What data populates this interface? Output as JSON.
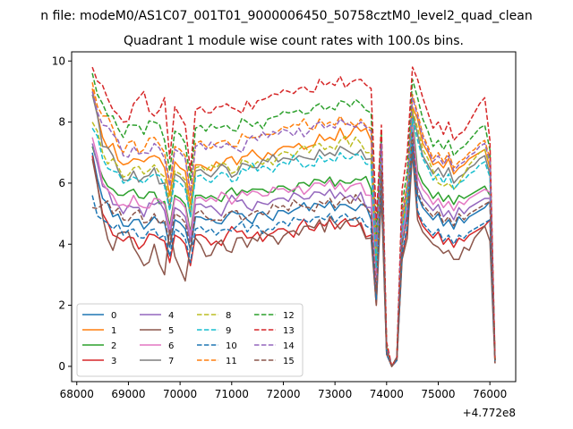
{
  "suptitle": "n file: modeM0/AS1C07_001T01_9000006450_50758cztM0_level2_quad_clean",
  "chart_data": {
    "type": "line",
    "title": "Quadrant 1 module wise count rates with 100.0s bins.",
    "xlabel": "",
    "ylabel": "",
    "x_offset_label": "+4.772e8",
    "xlim": [
      67900,
      76500
    ],
    "ylim": [
      -0.5,
      10.3
    ],
    "xticks": [
      68000,
      69000,
      70000,
      71000,
      72000,
      73000,
      74000,
      75000,
      76000
    ],
    "yticks": [
      0,
      2,
      4,
      6,
      8,
      10
    ],
    "legend": {
      "location": "lower-left",
      "columns": 4
    },
    "anchor_x": [
      68300,
      68500,
      68700,
      68900,
      69100,
      69300,
      69500,
      69700,
      69800,
      69900,
      70000,
      70100,
      70200,
      70300,
      70500,
      70700,
      70900,
      71100,
      71300,
      71500,
      71700,
      71900,
      72100,
      72300,
      72500,
      72700,
      72800,
      72900,
      73000,
      73100,
      73300,
      73500,
      73700,
      73800,
      73900,
      74000,
      74100,
      74200,
      74300,
      74400,
      74500,
      74600,
      74700,
      74800,
      74900,
      75000,
      75100,
      75200,
      75300,
      75400,
      75500,
      75600,
      75700,
      75800,
      75900,
      76000,
      76100
    ],
    "series": [
      {
        "name": "0",
        "color": "#1f77b4",
        "dash": "solid",
        "values": [
          7.0,
          5.5,
          4.9,
          4.6,
          4.8,
          4.5,
          4.9,
          4.7,
          3.9,
          4.8,
          4.7,
          4.5,
          3.8,
          4.9,
          4.8,
          4.7,
          4.9,
          5.0,
          4.8,
          5.0,
          4.9,
          5.1,
          5.0,
          5.2,
          5.1,
          5.3,
          5.2,
          5.4,
          5.1,
          5.3,
          5.2,
          5.3,
          4.8,
          2.2,
          6.8,
          0.5,
          0.0,
          0.3,
          4.0,
          5.0,
          7.8,
          5.6,
          5.2,
          5.0,
          4.8,
          5.0,
          4.6,
          4.8,
          4.5,
          4.9,
          4.7,
          4.9,
          5.0,
          5.1,
          5.2,
          5.4,
          0.2
        ]
      },
      {
        "name": "1",
        "color": "#ff7f0e",
        "dash": "solid",
        "values": [
          9.1,
          7.5,
          7.3,
          6.6,
          6.8,
          6.7,
          6.9,
          6.5,
          5.6,
          6.7,
          6.5,
          6.4,
          5.3,
          6.6,
          6.5,
          6.7,
          6.8,
          6.6,
          6.9,
          6.9,
          7.0,
          7.1,
          7.2,
          7.3,
          7.2,
          7.6,
          7.4,
          7.5,
          7.4,
          7.8,
          7.6,
          7.7,
          7.4,
          3.8,
          7.2,
          0.6,
          0.0,
          0.3,
          4.7,
          5.7,
          8.5,
          8.1,
          7.3,
          7.0,
          6.6,
          6.7,
          6.5,
          6.8,
          6.3,
          6.5,
          6.6,
          6.8,
          6.9,
          7.0,
          7.1,
          6.5,
          0.2
        ]
      },
      {
        "name": "2",
        "color": "#2ca02c",
        "dash": "solid",
        "values": [
          7.2,
          6.2,
          5.8,
          5.6,
          5.8,
          5.5,
          5.7,
          5.4,
          4.6,
          5.6,
          5.5,
          5.3,
          4.4,
          5.6,
          5.5,
          5.5,
          5.7,
          5.6,
          5.7,
          5.8,
          5.7,
          5.9,
          5.8,
          6.0,
          5.9,
          6.1,
          6.0,
          6.2,
          5.9,
          6.1,
          6.0,
          6.1,
          5.8,
          3.0,
          6.5,
          0.5,
          0.0,
          0.3,
          4.3,
          5.4,
          8.2,
          6.4,
          6.0,
          5.8,
          5.5,
          5.7,
          5.4,
          5.6,
          5.3,
          5.6,
          5.5,
          5.6,
          5.7,
          5.8,
          5.9,
          5.6,
          0.2
        ]
      },
      {
        "name": "3",
        "color": "#d62728",
        "dash": "solid",
        "values": [
          6.9,
          5.0,
          4.3,
          4.1,
          4.2,
          4.0,
          4.3,
          4.1,
          3.4,
          4.3,
          4.2,
          4.0,
          3.3,
          4.3,
          4.2,
          4.1,
          4.3,
          4.4,
          4.2,
          4.4,
          4.3,
          4.5,
          4.4,
          4.6,
          4.5,
          4.7,
          4.6,
          4.8,
          4.5,
          4.7,
          4.6,
          4.7,
          4.3,
          2.0,
          6.0,
          0.4,
          0.0,
          0.2,
          3.6,
          4.5,
          7.2,
          5.0,
          4.6,
          4.4,
          4.2,
          4.4,
          4.0,
          4.2,
          3.9,
          4.2,
          4.1,
          4.3,
          4.4,
          4.5,
          4.6,
          4.8,
          0.1
        ]
      },
      {
        "name": "4",
        "color": "#9467bd",
        "dash": "solid",
        "values": [
          7.3,
          5.9,
          5.3,
          5.0,
          5.2,
          4.9,
          5.3,
          5.1,
          4.3,
          5.2,
          5.1,
          4.9,
          4.1,
          5.3,
          5.2,
          5.1,
          5.3,
          5.4,
          5.2,
          5.4,
          5.3,
          5.5,
          5.4,
          5.6,
          5.5,
          5.7,
          5.6,
          5.8,
          5.5,
          5.7,
          5.6,
          5.7,
          5.2,
          2.5,
          6.6,
          0.5,
          0.0,
          0.3,
          4.1,
          5.1,
          7.9,
          5.9,
          5.5,
          5.3,
          5.1,
          5.3,
          4.9,
          5.1,
          4.8,
          5.2,
          5.0,
          5.2,
          5.3,
          5.4,
          5.5,
          5.5,
          0.2
        ]
      },
      {
        "name": "5",
        "color": "#8c564b",
        "dash": "solid",
        "values": [
          6.8,
          4.9,
          3.8,
          4.4,
          3.9,
          3.3,
          4.0,
          3.0,
          4.5,
          3.6,
          3.2,
          2.8,
          3.9,
          4.2,
          3.6,
          4.0,
          3.8,
          4.2,
          3.9,
          4.1,
          4.3,
          4.0,
          4.4,
          4.3,
          4.6,
          4.8,
          4.4,
          4.9,
          4.7,
          4.5,
          4.8,
          4.6,
          4.2,
          2.0,
          5.6,
          0.4,
          0.0,
          0.2,
          3.5,
          4.2,
          7.0,
          4.8,
          4.4,
          4.2,
          4.0,
          3.9,
          3.7,
          3.8,
          3.5,
          3.5,
          3.9,
          3.8,
          4.2,
          4.4,
          4.6,
          4.1,
          0.1
        ]
      },
      {
        "name": "6",
        "color": "#e377c2",
        "dash": "solid",
        "values": [
          7.5,
          6.0,
          5.6,
          5.3,
          5.6,
          5.2,
          5.5,
          5.3,
          4.5,
          5.5,
          5.4,
          5.2,
          4.3,
          5.5,
          5.4,
          5.4,
          5.6,
          5.5,
          5.6,
          5.7,
          5.6,
          5.8,
          5.7,
          5.9,
          5.8,
          6.0,
          5.9,
          6.1,
          5.8,
          6.0,
          5.9,
          6.0,
          5.6,
          2.8,
          6.7,
          0.5,
          0.0,
          0.3,
          4.2,
          5.3,
          8.0,
          6.2,
          5.8,
          5.6,
          5.3,
          5.5,
          5.2,
          5.4,
          5.1,
          5.4,
          5.3,
          5.5,
          5.6,
          5.7,
          5.8,
          5.7,
          0.2
        ]
      },
      {
        "name": "7",
        "color": "#7f7f7f",
        "dash": "solid",
        "values": [
          8.9,
          7.2,
          6.9,
          6.1,
          6.4,
          6.2,
          6.5,
          6.0,
          5.2,
          6.3,
          6.2,
          6.0,
          4.9,
          6.4,
          6.3,
          6.4,
          6.5,
          6.3,
          6.6,
          6.5,
          6.7,
          6.7,
          6.8,
          6.9,
          6.8,
          7.1,
          6.9,
          7.0,
          6.9,
          7.2,
          7.0,
          7.1,
          6.8,
          3.4,
          7.0,
          0.6,
          0.0,
          0.3,
          4.5,
          5.5,
          8.3,
          7.6,
          6.9,
          6.6,
          6.3,
          6.5,
          6.2,
          6.5,
          6.0,
          6.2,
          6.3,
          6.5,
          6.6,
          6.8,
          6.9,
          6.3,
          0.2
        ]
      },
      {
        "name": "8",
        "color": "#bcbd22",
        "dash": "dashed",
        "values": [
          8.0,
          7.0,
          6.8,
          6.2,
          6.5,
          6.3,
          6.6,
          6.2,
          5.4,
          6.4,
          6.3,
          6.1,
          5.1,
          6.5,
          6.4,
          6.5,
          6.6,
          6.4,
          6.7,
          6.7,
          6.8,
          6.9,
          7.0,
          7.1,
          7.0,
          7.3,
          7.1,
          7.2,
          7.1,
          7.4,
          7.2,
          7.3,
          7.0,
          3.5,
          7.1,
          0.6,
          0.0,
          0.3,
          4.6,
          5.6,
          8.4,
          7.8,
          7.1,
          6.8,
          6.4,
          6.0,
          5.9,
          6.0,
          5.8,
          6.0,
          6.3,
          6.6,
          6.8,
          7.0,
          7.1,
          6.6,
          0.2
        ]
      },
      {
        "name": "9",
        "color": "#17becf",
        "dash": "dashed",
        "values": [
          7.8,
          6.8,
          6.4,
          6.0,
          6.2,
          6.0,
          6.3,
          5.9,
          5.1,
          6.1,
          6.0,
          5.8,
          4.9,
          6.2,
          6.1,
          6.2,
          6.3,
          6.1,
          6.4,
          6.4,
          6.5,
          6.6,
          6.6,
          6.7,
          6.6,
          6.9,
          6.7,
          6.8,
          6.7,
          7.0,
          6.8,
          6.9,
          6.6,
          3.2,
          6.9,
          0.6,
          0.0,
          0.3,
          4.4,
          5.5,
          8.1,
          7.4,
          6.8,
          6.5,
          6.1,
          6.3,
          6.0,
          6.3,
          5.8,
          6.0,
          6.1,
          6.3,
          6.4,
          6.6,
          6.7,
          6.2,
          0.2
        ]
      },
      {
        "name": "10",
        "color": "#1f77b4",
        "dash": "dashed",
        "values": [
          5.6,
          4.8,
          4.5,
          4.3,
          4.5,
          4.2,
          4.5,
          4.3,
          3.6,
          4.5,
          4.4,
          4.2,
          3.4,
          4.5,
          4.4,
          4.3,
          4.5,
          4.6,
          4.4,
          4.6,
          4.5,
          4.7,
          4.6,
          4.8,
          4.7,
          4.9,
          4.8,
          5.0,
          4.7,
          4.9,
          4.8,
          4.9,
          4.5,
          2.2,
          6.1,
          0.4,
          0.0,
          0.2,
          3.7,
          4.6,
          7.3,
          5.1,
          4.7,
          4.5,
          4.3,
          4.5,
          4.1,
          4.3,
          4.0,
          4.3,
          4.2,
          4.4,
          4.5,
          4.6,
          4.7,
          4.8,
          0.1
        ]
      },
      {
        "name": "11",
        "color": "#ff7f0e",
        "dash": "dashed",
        "values": [
          9.3,
          8.2,
          7.8,
          7.0,
          7.4,
          7.1,
          7.5,
          7.0,
          6.0,
          7.2,
          7.1,
          6.9,
          5.7,
          7.3,
          7.2,
          7.3,
          7.4,
          7.2,
          7.5,
          7.5,
          7.6,
          7.7,
          7.8,
          7.9,
          7.8,
          8.1,
          7.9,
          8.0,
          7.9,
          8.2,
          8.0,
          8.1,
          7.8,
          4.0,
          7.4,
          0.7,
          0.0,
          0.3,
          5.0,
          6.0,
          8.9,
          8.3,
          7.6,
          7.2,
          6.8,
          7.0,
          6.7,
          7.0,
          6.5,
          6.7,
          6.8,
          7.0,
          7.1,
          7.3,
          7.4,
          6.8,
          0.2
        ]
      },
      {
        "name": "12",
        "color": "#2ca02c",
        "dash": "dashed",
        "values": [
          9.6,
          8.6,
          8.2,
          7.5,
          7.9,
          7.6,
          8.0,
          7.4,
          6.4,
          7.7,
          7.6,
          7.3,
          6.1,
          7.8,
          7.7,
          7.8,
          7.9,
          7.7,
          8.0,
          8.0,
          8.1,
          8.2,
          8.3,
          8.4,
          8.3,
          8.6,
          8.4,
          8.5,
          8.4,
          8.7,
          8.5,
          8.6,
          8.3,
          4.3,
          7.6,
          0.7,
          0.0,
          0.3,
          5.3,
          6.4,
          9.4,
          8.8,
          8.1,
          7.7,
          7.2,
          7.4,
          7.1,
          7.4,
          6.9,
          7.1,
          7.2,
          7.4,
          7.6,
          7.8,
          7.9,
          7.1,
          0.2
        ]
      },
      {
        "name": "13",
        "color": "#d62728",
        "dash": "dashed",
        "values": [
          9.8,
          9.2,
          8.4,
          8.0,
          8.6,
          9.0,
          8.2,
          8.8,
          6.8,
          8.5,
          8.2,
          7.9,
          6.4,
          8.4,
          8.3,
          8.5,
          8.6,
          8.4,
          8.7,
          8.7,
          8.8,
          8.9,
          9.0,
          9.1,
          9.0,
          9.4,
          9.2,
          9.3,
          9.2,
          9.5,
          9.3,
          9.4,
          9.1,
          4.8,
          7.9,
          0.8,
          0.0,
          0.3,
          5.8,
          7.0,
          9.8,
          9.4,
          8.8,
          8.3,
          7.8,
          8.0,
          7.6,
          8.0,
          7.4,
          7.6,
          7.7,
          8.0,
          8.3,
          8.6,
          8.8,
          7.4,
          0.3
        ]
      },
      {
        "name": "14",
        "color": "#9467bd",
        "dash": "dashed",
        "values": [
          9.0,
          7.9,
          7.6,
          6.9,
          7.2,
          7.0,
          7.3,
          6.8,
          5.9,
          7.1,
          7.0,
          6.8,
          5.6,
          7.2,
          7.1,
          7.2,
          7.3,
          7.1,
          7.4,
          7.4,
          7.5,
          7.6,
          7.7,
          7.8,
          7.7,
          8.0,
          7.8,
          7.9,
          7.8,
          8.1,
          7.9,
          8.0,
          7.7,
          3.9,
          7.3,
          0.6,
          0.0,
          0.3,
          4.9,
          5.9,
          8.8,
          8.2,
          7.5,
          7.1,
          6.7,
          6.9,
          6.6,
          6.9,
          6.4,
          6.6,
          6.7,
          6.9,
          7.0,
          7.2,
          7.3,
          6.7,
          0.2
        ]
      },
      {
        "name": "15",
        "color": "#8c564b",
        "dash": "dashed",
        "values": [
          5.2,
          5.3,
          5.0,
          4.8,
          5.0,
          4.7,
          5.0,
          4.8,
          4.0,
          5.0,
          4.9,
          4.7,
          3.9,
          5.0,
          4.9,
          4.8,
          5.0,
          5.1,
          4.9,
          5.1,
          5.0,
          5.2,
          5.1,
          5.3,
          5.2,
          5.4,
          5.3,
          5.5,
          5.2,
          5.4,
          5.3,
          5.4,
          5.0,
          2.4,
          6.4,
          0.5,
          0.0,
          0.3,
          4.0,
          4.9,
          7.7,
          5.7,
          5.3,
          5.1,
          4.9,
          5.1,
          4.7,
          4.9,
          4.6,
          5.0,
          4.8,
          5.0,
          5.1,
          5.2,
          5.3,
          5.4,
          0.2
        ]
      }
    ]
  }
}
